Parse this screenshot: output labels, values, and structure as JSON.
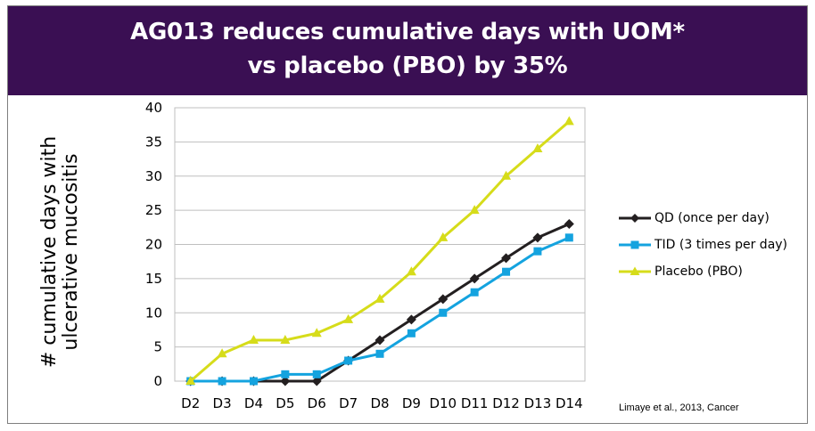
{
  "title": {
    "line1": "AG013 reduces cumulative days with UOM*",
    "line2": "vs placebo (PBO) by 35%"
  },
  "chart_data": {
    "type": "line",
    "title": "AG013 reduces cumulative days with UOM* vs placebo (PBO) by 35%",
    "xlabel": "",
    "ylabel_lines": [
      "# cumulative days with",
      "ulcerative mucositis"
    ],
    "categories": [
      "D2",
      "D3",
      "D4",
      "D5",
      "D6",
      "D7",
      "D8",
      "D9",
      "D10",
      "D11",
      "D12",
      "D13",
      "D14"
    ],
    "ylim": [
      0,
      40
    ],
    "yticks": [
      0,
      5,
      10,
      15,
      20,
      25,
      30,
      35,
      40
    ],
    "grid": true,
    "legend_position": "right",
    "series": [
      {
        "name": "QD (once per day)",
        "color": "#231f20",
        "marker": "diamond",
        "values": [
          0,
          0,
          0,
          0,
          0,
          3,
          6,
          9,
          12,
          15,
          18,
          21,
          23
        ]
      },
      {
        "name": "TID (3 times per day)",
        "color": "#14a3df",
        "marker": "square",
        "values": [
          0,
          0,
          0,
          1,
          1,
          3,
          4,
          7,
          10,
          13,
          16,
          19,
          21
        ]
      },
      {
        "name": "Placebo (PBO)",
        "color": "#d6dc1a",
        "marker": "triangle",
        "values": [
          0,
          4,
          6,
          6,
          7,
          9,
          12,
          16,
          21,
          25,
          30,
          34,
          38
        ]
      }
    ]
  },
  "source": "Limaye et al., 2013, Cancer"
}
